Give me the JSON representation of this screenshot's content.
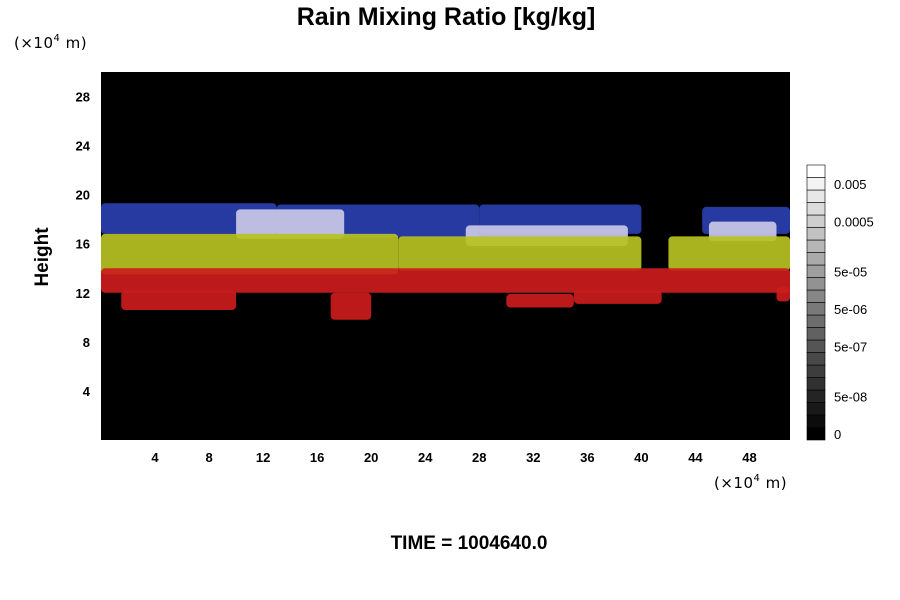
{
  "chart_data": {
    "type": "heatmap",
    "title": "Rain Mixing Ratio [kg/kg]",
    "xlabel": "",
    "ylabel": "Height",
    "x_unit_label": "(×10",
    "x_unit_exp": "4",
    "x_unit_suffix": " m)",
    "y_unit_label": "(×10",
    "y_unit_exp": "4",
    "y_unit_suffix": " m)",
    "xlim": [
      0,
      51
    ],
    "ylim": [
      0,
      30
    ],
    "x_ticks": [
      "4",
      "8",
      "12",
      "16",
      "20",
      "24",
      "28",
      "32",
      "36",
      "40",
      "44",
      "48"
    ],
    "x_tick_values": [
      4,
      8,
      12,
      16,
      20,
      24,
      28,
      32,
      36,
      40,
      44,
      48
    ],
    "y_ticks": [
      "4",
      "8",
      "12",
      "16",
      "20",
      "24",
      "28"
    ],
    "y_tick_values": [
      4,
      8,
      12,
      16,
      20,
      24,
      28
    ],
    "layers": [
      {
        "color": "#2a3fb0",
        "segments": [
          {
            "x0": 0,
            "x1": 13,
            "y0": 16.8,
            "y1": 19.3
          },
          {
            "x0": 13,
            "x1": 28,
            "y0": 16.5,
            "y1": 19.2
          },
          {
            "x0": 28,
            "x1": 40,
            "y0": 16.8,
            "y1": 19.2
          },
          {
            "x0": 44.5,
            "x1": 51,
            "y0": 16.8,
            "y1": 19.0
          }
        ]
      },
      {
        "color": "#c9c9e6",
        "segments": [
          {
            "x0": 10,
            "x1": 18,
            "y0": 16.4,
            "y1": 18.8
          },
          {
            "x0": 27,
            "x1": 39,
            "y0": 15.8,
            "y1": 17.5
          },
          {
            "x0": 45,
            "x1": 50,
            "y0": 16.2,
            "y1": 17.8
          }
        ]
      },
      {
        "color": "#b7c222",
        "segments": [
          {
            "x0": 0,
            "x1": 22,
            "y0": 13.5,
            "y1": 16.8
          },
          {
            "x0": 22,
            "x1": 40,
            "y0": 13.8,
            "y1": 16.6
          },
          {
            "x0": 42,
            "x1": 51,
            "y0": 13.8,
            "y1": 16.6
          }
        ]
      },
      {
        "color": "#cc1c1c",
        "segments": [
          {
            "x0": 0,
            "x1": 51,
            "y0": 12.0,
            "y1": 14.0
          },
          {
            "x0": 1.5,
            "x1": 10,
            "y0": 10.6,
            "y1": 12.2
          },
          {
            "x0": 17,
            "x1": 20,
            "y0": 9.8,
            "y1": 12.0
          },
          {
            "x0": 30,
            "x1": 35,
            "y0": 10.8,
            "y1": 11.9
          },
          {
            "x0": 35,
            "x1": 41.5,
            "y0": 11.1,
            "y1": 12.2
          },
          {
            "x0": 50,
            "x1": 51,
            "y0": 11.3,
            "y1": 12.5
          }
        ]
      }
    ],
    "colorbar": {
      "levels": 22,
      "labels": [
        "0.005",
        "0.0005",
        "5e-05",
        "5e-06",
        "5e-07",
        "5e-08",
        "0"
      ],
      "label_levels": [
        20,
        17,
        13,
        10,
        7,
        3,
        0
      ]
    },
    "annotation": "TIME = 1004640.0"
  }
}
